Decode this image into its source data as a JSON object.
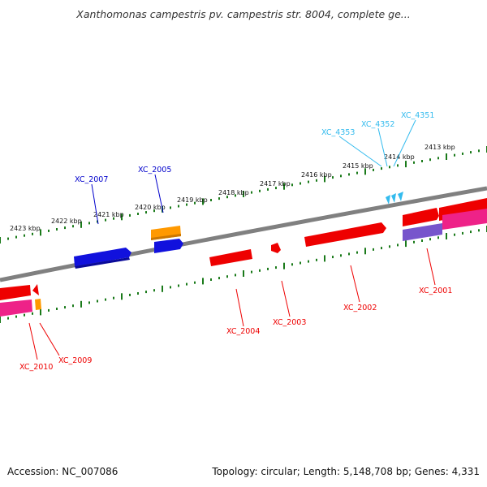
{
  "header": {
    "title": "Xanthomonas campestris pv. campestris str. 8004, complete ge..."
  },
  "footer": {
    "accession": "Accession: NC_007086",
    "summary": "Topology: circular; Length: 5,148,708 bp; Genes: 4,331"
  },
  "colors": {
    "backbone": "#808080",
    "tick": "#1a7a1a",
    "forward_gene": "#ee0000",
    "reverse_gene_label": "#0000cc",
    "blue_gene": "#1111dd",
    "orange_gene": "#ff9900",
    "magenta_band": "#ee2288",
    "purple_band": "#7755cc",
    "trna": "#33bbee"
  },
  "scale": {
    "kbp_labels": [
      "2423 kbp",
      "2422 kbp",
      "2421 kbp",
      "2420 kbp",
      "2419 kbp",
      "2418 kbp",
      "2417 kbp",
      "2416 kbp",
      "2415 kbp",
      "2414 kbp",
      "2413 kbp"
    ]
  },
  "genes": {
    "xc_2007": "XC_2007",
    "xc_2005": "XC_2005",
    "xc_4353": "XC_4353",
    "xc_4352": "XC_4352",
    "xc_4351": "XC_4351",
    "xc_2010": "XC_2010",
    "xc_2009": "XC_2009",
    "xc_2004": "XC_2004",
    "xc_2003": "XC_2003",
    "xc_2002": "XC_2002",
    "xc_2001": "XC_2001"
  }
}
